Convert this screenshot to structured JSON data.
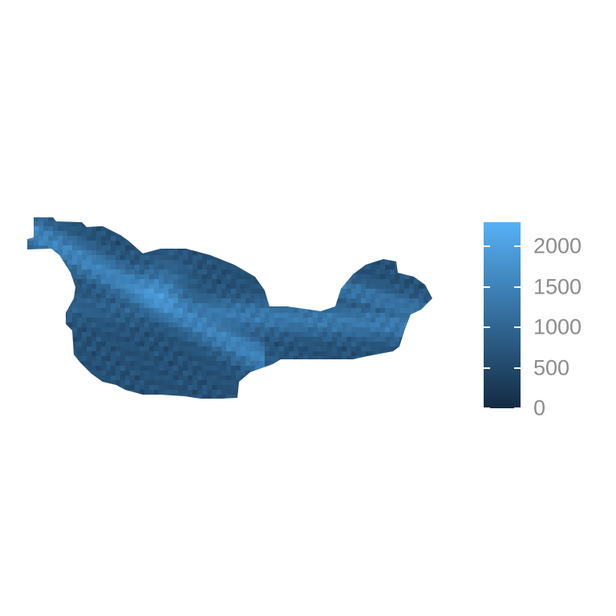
{
  "map": {
    "type": "raster",
    "value_min": 0,
    "value_max": 2300,
    "color_low": "#132b43",
    "color_high": "#56b1f7",
    "background": "#ffffff"
  },
  "legend": {
    "title": "",
    "breaks": [
      {
        "value": 0,
        "label": "0"
      },
      {
        "value": 500,
        "label": "500"
      },
      {
        "value": 1000,
        "label": "1000"
      },
      {
        "value": 1500,
        "label": "1500"
      },
      {
        "value": 2000,
        "label": "2000"
      }
    ],
    "colors": {
      "low": "#132b43",
      "high": "#56b1f7"
    }
  }
}
